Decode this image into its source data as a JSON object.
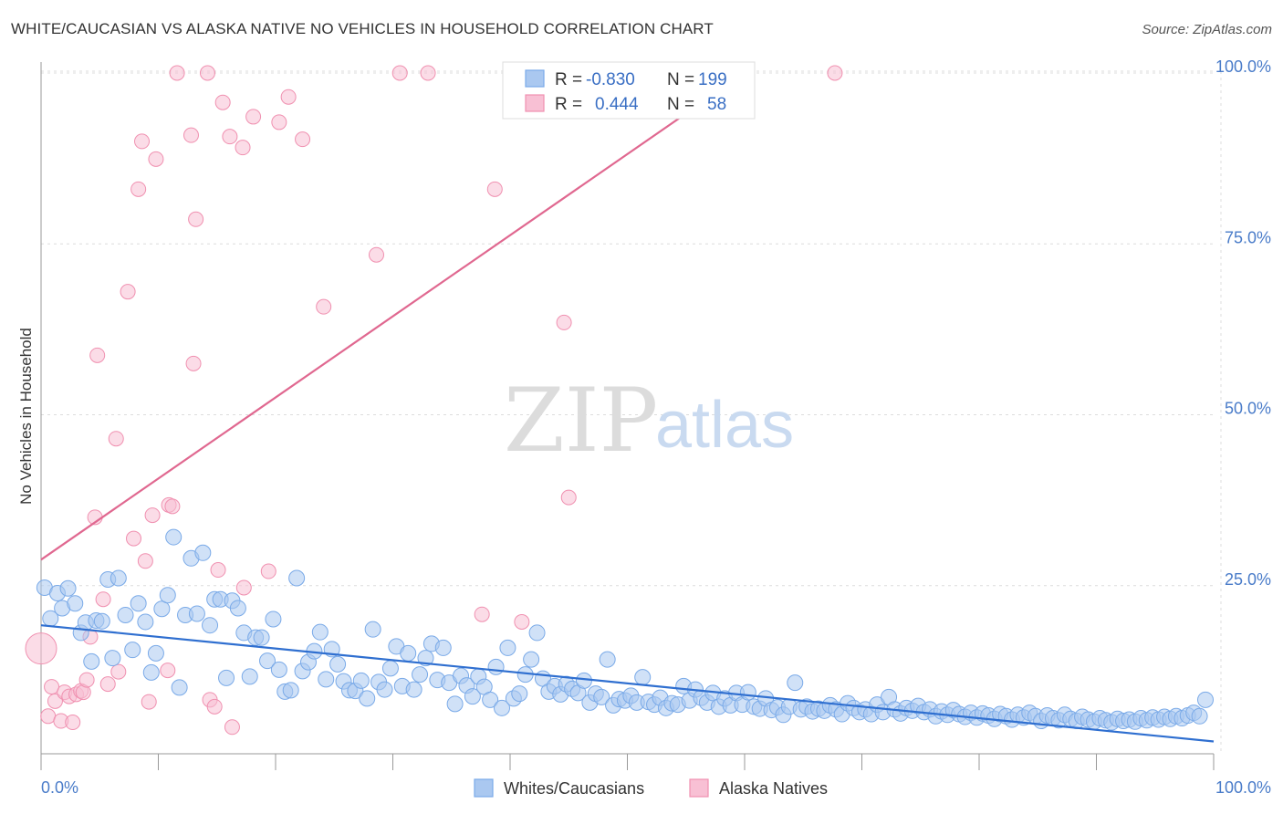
{
  "title": "WHITE/CAUCASIAN VS ALASKA NATIVE NO VEHICLES IN HOUSEHOLD CORRELATION CHART",
  "source": "Source: ZipAtlas.com",
  "watermark": {
    "zip": "ZIP",
    "atlas": "atlas"
  },
  "colors": {
    "blue": "#7aaae8",
    "blue_fill": "#aac8f0",
    "blue_line": "#2f6fd0",
    "pink": "#f090b0",
    "pink_fill": "#f8c0d4",
    "pink_line": "#e06890",
    "tick": "#4a7cc9"
  },
  "legend": {
    "r_label": "R =",
    "n_label": "N =",
    "series": [
      {
        "r": "-0.830",
        "n": "199"
      },
      {
        "r": "0.444",
        "n": "58"
      }
    ]
  },
  "chart_data": {
    "type": "scatter",
    "title": "WHITE/CAUCASIAN VS ALASKA NATIVE NO VEHICLES IN HOUSEHOLD CORRELATION CHART",
    "xlabel": "",
    "ylabel": "No Vehicles in Household",
    "xlim": [
      0,
      100
    ],
    "ylim": [
      0,
      105
    ],
    "x_tick_labels": [
      "0.0%",
      "100.0%"
    ],
    "y_tick_labels": [
      "25.0%",
      "50.0%",
      "75.0%",
      "100.0%"
    ],
    "y_ticks": [
      25,
      50,
      75,
      100
    ],
    "grid": true,
    "legend_position": "top-center",
    "series": [
      {
        "name": "Whites/Caucasians",
        "color": "#7aaae8",
        "trend": {
          "x": [
            0,
            100
          ],
          "y": [
            19.2,
            2.2
          ]
        },
        "points": [
          [
            0.3,
            24.7
          ],
          [
            0.8,
            20.2
          ],
          [
            1.4,
            23.9
          ],
          [
            1.8,
            21.7
          ],
          [
            2.3,
            24.6
          ],
          [
            2.9,
            22.4
          ],
          [
            3.4,
            18.1
          ],
          [
            3.8,
            19.6
          ],
          [
            4.3,
            13.9
          ],
          [
            4.7,
            19.9
          ],
          [
            5.2,
            19.8
          ],
          [
            5.7,
            25.9
          ],
          [
            6.1,
            14.4
          ],
          [
            6.6,
            26.1
          ],
          [
            7.2,
            20.7
          ],
          [
            7.8,
            15.6
          ],
          [
            8.3,
            22.4
          ],
          [
            8.9,
            19.7
          ],
          [
            9.4,
            12.3
          ],
          [
            9.8,
            15.1
          ],
          [
            10.3,
            21.6
          ],
          [
            10.8,
            23.6
          ],
          [
            11.3,
            32.1
          ],
          [
            11.8,
            10.1
          ],
          [
            12.3,
            20.7
          ],
          [
            12.8,
            29.0
          ],
          [
            13.3,
            20.9
          ],
          [
            13.8,
            29.8
          ],
          [
            14.4,
            19.2
          ],
          [
            14.8,
            23.0
          ],
          [
            15.3,
            23.0
          ],
          [
            15.8,
            11.5
          ],
          [
            16.3,
            22.8
          ],
          [
            16.8,
            21.7
          ],
          [
            17.3,
            18.1
          ],
          [
            17.8,
            11.7
          ],
          [
            18.3,
            17.4
          ],
          [
            18.8,
            17.4
          ],
          [
            19.3,
            14.0
          ],
          [
            19.8,
            20.1
          ],
          [
            20.3,
            12.7
          ],
          [
            20.8,
            9.5
          ],
          [
            21.3,
            9.7
          ],
          [
            21.8,
            26.1
          ],
          [
            22.3,
            12.5
          ],
          [
            22.8,
            13.8
          ],
          [
            23.3,
            15.4
          ],
          [
            23.8,
            18.2
          ],
          [
            24.3,
            11.3
          ],
          [
            24.8,
            15.7
          ],
          [
            25.3,
            13.5
          ],
          [
            25.8,
            11.0
          ],
          [
            26.3,
            9.7
          ],
          [
            26.8,
            9.6
          ],
          [
            27.3,
            11.1
          ],
          [
            27.8,
            8.5
          ],
          [
            28.3,
            18.6
          ],
          [
            28.8,
            10.9
          ],
          [
            29.3,
            9.8
          ],
          [
            29.8,
            12.9
          ],
          [
            30.3,
            16.1
          ],
          [
            30.8,
            10.3
          ],
          [
            31.3,
            15.1
          ],
          [
            31.8,
            9.8
          ],
          [
            32.3,
            12.0
          ],
          [
            32.8,
            14.4
          ],
          [
            33.3,
            16.5
          ],
          [
            33.8,
            11.2
          ],
          [
            34.3,
            15.9
          ],
          [
            34.8,
            10.8
          ],
          [
            35.3,
            7.7
          ],
          [
            35.8,
            11.8
          ],
          [
            36.3,
            10.4
          ],
          [
            36.8,
            8.8
          ],
          [
            37.3,
            11.7
          ],
          [
            37.8,
            10.2
          ],
          [
            38.3,
            8.3
          ],
          [
            38.8,
            13.1
          ],
          [
            39.3,
            7.1
          ],
          [
            39.8,
            15.9
          ],
          [
            40.3,
            8.5
          ],
          [
            40.8,
            9.2
          ],
          [
            41.3,
            12.0
          ],
          [
            41.8,
            14.2
          ],
          [
            42.3,
            18.1
          ],
          [
            42.8,
            11.4
          ],
          [
            43.3,
            9.5
          ],
          [
            43.8,
            10.3
          ],
          [
            44.3,
            9.1
          ],
          [
            44.8,
            10.6
          ],
          [
            45.3,
            9.9
          ],
          [
            45.8,
            9.3
          ],
          [
            46.3,
            11.1
          ],
          [
            46.8,
            7.9
          ],
          [
            47.3,
            9.2
          ],
          [
            47.8,
            8.7
          ],
          [
            48.3,
            14.2
          ],
          [
            48.8,
            7.5
          ],
          [
            49.3,
            8.4
          ],
          [
            49.8,
            8.2
          ],
          [
            50.3,
            8.9
          ],
          [
            50.8,
            7.9
          ],
          [
            51.3,
            11.6
          ],
          [
            51.8,
            8.0
          ],
          [
            52.3,
            7.6
          ],
          [
            52.8,
            8.6
          ],
          [
            53.3,
            7.1
          ],
          [
            53.8,
            7.8
          ],
          [
            54.3,
            7.6
          ],
          [
            54.8,
            10.3
          ],
          [
            55.3,
            8.2
          ],
          [
            55.8,
            9.8
          ],
          [
            56.3,
            8.6
          ],
          [
            56.8,
            7.9
          ],
          [
            57.3,
            9.3
          ],
          [
            57.8,
            7.3
          ],
          [
            58.3,
            8.5
          ],
          [
            58.8,
            7.5
          ],
          [
            59.3,
            9.3
          ],
          [
            59.8,
            7.6
          ],
          [
            60.3,
            9.4
          ],
          [
            60.8,
            7.3
          ],
          [
            61.3,
            7.0
          ],
          [
            61.8,
            8.5
          ],
          [
            62.3,
            6.8
          ],
          [
            62.8,
            7.2
          ],
          [
            63.3,
            6.1
          ],
          [
            63.8,
            7.3
          ],
          [
            64.3,
            10.8
          ],
          [
            64.8,
            6.9
          ],
          [
            65.3,
            7.3
          ],
          [
            65.8,
            6.6
          ],
          [
            66.3,
            7.0
          ],
          [
            66.8,
            6.7
          ],
          [
            67.3,
            7.5
          ],
          [
            67.8,
            6.9
          ],
          [
            68.3,
            6.2
          ],
          [
            68.8,
            7.8
          ],
          [
            69.3,
            7.1
          ],
          [
            69.8,
            6.5
          ],
          [
            70.3,
            6.9
          ],
          [
            70.8,
            6.2
          ],
          [
            71.3,
            7.6
          ],
          [
            71.8,
            6.5
          ],
          [
            72.3,
            8.7
          ],
          [
            72.8,
            6.9
          ],
          [
            73.3,
            6.3
          ],
          [
            73.8,
            7.1
          ],
          [
            74.3,
            6.7
          ],
          [
            74.8,
            7.4
          ],
          [
            75.3,
            6.5
          ],
          [
            75.8,
            6.9
          ],
          [
            76.3,
            5.9
          ],
          [
            76.8,
            6.6
          ],
          [
            77.3,
            6.1
          ],
          [
            77.8,
            6.8
          ],
          [
            78.3,
            6.2
          ],
          [
            78.8,
            5.8
          ],
          [
            79.3,
            6.4
          ],
          [
            79.8,
            5.7
          ],
          [
            80.3,
            6.3
          ],
          [
            80.8,
            6.0
          ],
          [
            81.3,
            5.5
          ],
          [
            81.8,
            6.2
          ],
          [
            82.3,
            5.9
          ],
          [
            82.8,
            5.4
          ],
          [
            83.3,
            6.1
          ],
          [
            83.8,
            5.7
          ],
          [
            84.3,
            6.4
          ],
          [
            84.8,
            5.9
          ],
          [
            85.3,
            5.2
          ],
          [
            85.8,
            6.0
          ],
          [
            86.3,
            5.6
          ],
          [
            86.8,
            5.3
          ],
          [
            87.3,
            6.1
          ],
          [
            87.8,
            5.5
          ],
          [
            88.3,
            5.2
          ],
          [
            88.8,
            5.8
          ],
          [
            89.3,
            5.4
          ],
          [
            89.8,
            5.1
          ],
          [
            90.3,
            5.6
          ],
          [
            90.8,
            5.3
          ],
          [
            91.3,
            5.0
          ],
          [
            91.8,
            5.5
          ],
          [
            92.3,
            5.2
          ],
          [
            92.8,
            5.4
          ],
          [
            93.3,
            5.1
          ],
          [
            93.8,
            5.6
          ],
          [
            94.3,
            5.3
          ],
          [
            94.8,
            5.7
          ],
          [
            95.3,
            5.4
          ],
          [
            95.8,
            5.8
          ],
          [
            96.3,
            5.5
          ],
          [
            96.8,
            5.9
          ],
          [
            97.3,
            5.6
          ],
          [
            97.8,
            6.0
          ],
          [
            98.3,
            6.4
          ],
          [
            98.8,
            5.9
          ],
          [
            99.3,
            8.3
          ]
        ]
      },
      {
        "name": "Alaska Natives",
        "color": "#f090b0",
        "trend": {
          "x": [
            0,
            60
          ],
          "y": [
            28.8,
            100
          ]
        },
        "points": [
          [
            0.0,
            15.8
          ],
          [
            0.6,
            5.9
          ],
          [
            0.9,
            10.2
          ],
          [
            1.2,
            8.1
          ],
          [
            1.7,
            5.2
          ],
          [
            2.0,
            9.4
          ],
          [
            2.4,
            8.8
          ],
          [
            2.7,
            5.0
          ],
          [
            3.0,
            9.1
          ],
          [
            3.4,
            9.6
          ],
          [
            3.6,
            9.4
          ],
          [
            3.9,
            11.2
          ],
          [
            4.2,
            17.5
          ],
          [
            4.6,
            35.0
          ],
          [
            4.8,
            58.7
          ],
          [
            5.3,
            23.0
          ],
          [
            5.7,
            10.6
          ],
          [
            6.4,
            46.5
          ],
          [
            6.6,
            12.4
          ],
          [
            7.4,
            68.0
          ],
          [
            7.9,
            31.9
          ],
          [
            8.3,
            83.0
          ],
          [
            8.6,
            90.0
          ],
          [
            8.9,
            28.6
          ],
          [
            9.2,
            8.0
          ],
          [
            9.5,
            35.3
          ],
          [
            9.8,
            87.4
          ],
          [
            10.8,
            12.6
          ],
          [
            10.9,
            36.8
          ],
          [
            11.2,
            36.6
          ],
          [
            11.6,
            100.0
          ],
          [
            12.8,
            90.9
          ],
          [
            13.0,
            57.5
          ],
          [
            13.2,
            78.6
          ],
          [
            14.2,
            100.0
          ],
          [
            14.4,
            8.3
          ],
          [
            14.8,
            7.3
          ],
          [
            15.1,
            27.3
          ],
          [
            15.5,
            95.7
          ],
          [
            16.1,
            90.7
          ],
          [
            16.3,
            4.3
          ],
          [
            17.2,
            89.1
          ],
          [
            17.3,
            24.7
          ],
          [
            18.1,
            93.6
          ],
          [
            19.4,
            27.1
          ],
          [
            20.3,
            92.8
          ],
          [
            21.1,
            96.5
          ],
          [
            22.3,
            90.3
          ],
          [
            24.1,
            65.8
          ],
          [
            28.6,
            73.4
          ],
          [
            30.6,
            100.0
          ],
          [
            33.0,
            100.0
          ],
          [
            37.6,
            20.8
          ],
          [
            38.7,
            83.0
          ],
          [
            41.0,
            19.7
          ],
          [
            44.6,
            63.5
          ],
          [
            45.0,
            37.9
          ],
          [
            67.7,
            100.0
          ]
        ]
      }
    ]
  },
  "bottom_legend": [
    {
      "label": "Whites/Caucasians"
    },
    {
      "label": "Alaska Natives"
    }
  ]
}
